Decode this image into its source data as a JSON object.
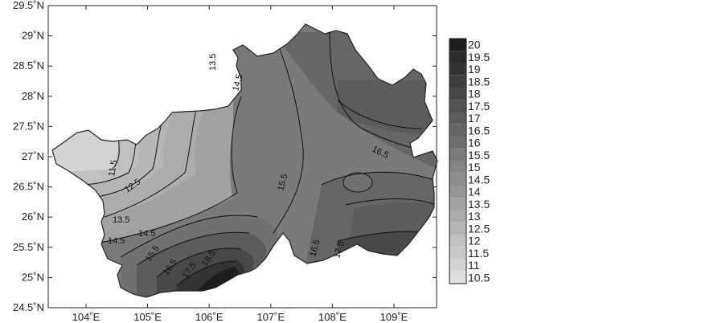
{
  "map": {
    "lat_ticks": [
      "29.5˚N",
      "29˚N",
      "28.5˚N",
      "28˚N",
      "27.5˚N",
      "27˚N",
      "26.5˚N",
      "26˚N",
      "25.5˚N",
      "25˚N",
      "24.5˚N"
    ],
    "lon_ticks": [
      "104˚E",
      "105˚E",
      "106˚E",
      "107˚E",
      "108˚E",
      "109˚E"
    ],
    "contour_labels": [
      "13.5",
      "14.5",
      "11.5",
      "12.5",
      "13.5",
      "14.5",
      "14.5",
      "15.5",
      "16.5",
      "17.5",
      "18.5",
      "15.5",
      "16.5",
      "16.5",
      "17.5"
    ]
  },
  "colorbar": {
    "labels": [
      "20",
      "19.5",
      "19",
      "18.5",
      "18",
      "17.5",
      "17",
      "16.5",
      "16",
      "15.5",
      "15",
      "14.5",
      "14",
      "13.5",
      "13",
      "12.5",
      "12",
      "11.5",
      "11",
      "10.5"
    ],
    "colors": [
      "#1e1e1e",
      "#2a2a2a",
      "#343434",
      "#3e3e3e",
      "#484848",
      "#525252",
      "#5c5c5c",
      "#666666",
      "#707070",
      "#7a7a7a",
      "#848484",
      "#8e8e8e",
      "#989898",
      "#a2a2a2",
      "#acacac",
      "#b6b6b6",
      "#c0c0c0",
      "#cacaca",
      "#d4d4d4",
      "#dedede"
    ]
  }
}
